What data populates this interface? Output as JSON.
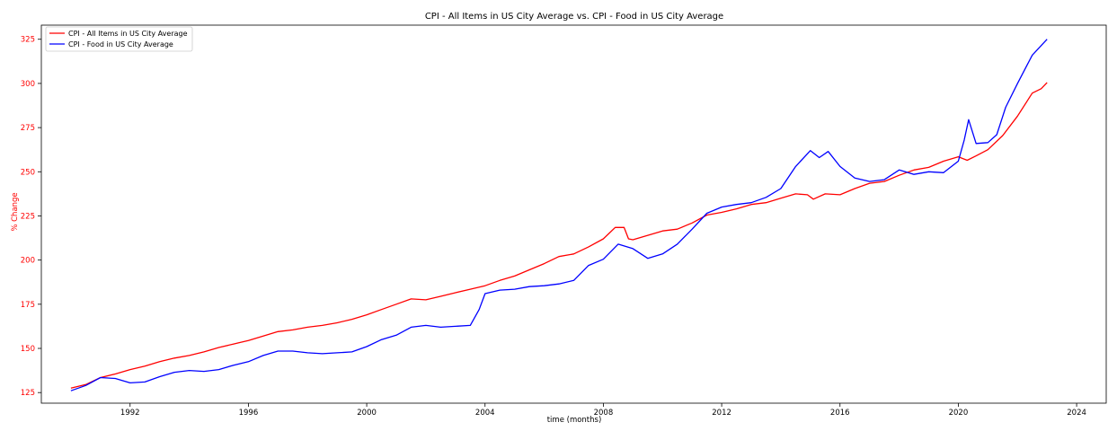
{
  "chart_data": {
    "type": "line",
    "title": "CPI - All Items in US City Average vs. CPI - Food in US City Average",
    "xlabel": "time (months)",
    "ylabel": "% Change",
    "xlim": [
      1989.0,
      2025.0
    ],
    "ylim": [
      119,
      333
    ],
    "x_ticks": [
      1992,
      1996,
      2000,
      2004,
      2008,
      2012,
      2016,
      2020,
      2024
    ],
    "x_tick_labels": [
      "1992",
      "1996",
      "2000",
      "2004",
      "2008",
      "2012",
      "2016",
      "2020",
      "2024"
    ],
    "y_ticks": [
      125,
      150,
      175,
      200,
      225,
      250,
      275,
      300,
      325
    ],
    "y_tick_labels": [
      "125",
      "150",
      "175",
      "200",
      "225",
      "250",
      "275",
      "300",
      "325"
    ],
    "ylabel_color": "#ff0000",
    "grid": false,
    "legend_position": "upper-left",
    "series": [
      {
        "name": "CPI - All Items in US City Average",
        "color": "#ff0000",
        "points": [
          [
            1990.0,
            127.5
          ],
          [
            1990.5,
            129.5
          ],
          [
            1991.0,
            133.5
          ],
          [
            1991.5,
            135.5
          ],
          [
            1992.0,
            138.0
          ],
          [
            1992.5,
            140.0
          ],
          [
            1993.0,
            142.5
          ],
          [
            1993.5,
            144.5
          ],
          [
            1994.0,
            146.0
          ],
          [
            1994.5,
            148.0
          ],
          [
            1995.0,
            150.5
          ],
          [
            1995.5,
            152.5
          ],
          [
            1996.0,
            154.5
          ],
          [
            1996.5,
            157.0
          ],
          [
            1997.0,
            159.5
          ],
          [
            1997.5,
            160.5
          ],
          [
            1998.0,
            162.0
          ],
          [
            1998.5,
            163.0
          ],
          [
            1999.0,
            164.5
          ],
          [
            1999.5,
            166.5
          ],
          [
            2000.0,
            169.0
          ],
          [
            2000.5,
            172.0
          ],
          [
            2001.0,
            175.0
          ],
          [
            2001.5,
            178.0
          ],
          [
            2002.0,
            177.5
          ],
          [
            2002.5,
            179.5
          ],
          [
            2003.0,
            181.5
          ],
          [
            2003.5,
            183.5
          ],
          [
            2004.0,
            185.5
          ],
          [
            2004.5,
            188.5
          ],
          [
            2005.0,
            191.0
          ],
          [
            2005.5,
            194.5
          ],
          [
            2006.0,
            198.0
          ],
          [
            2006.5,
            202.0
          ],
          [
            2007.0,
            203.5
          ],
          [
            2007.5,
            207.5
          ],
          [
            2008.0,
            212.0
          ],
          [
            2008.4,
            218.5
          ],
          [
            2008.7,
            218.5
          ],
          [
            2008.85,
            212.0
          ],
          [
            2009.0,
            211.5
          ],
          [
            2009.5,
            214.0
          ],
          [
            2010.0,
            216.5
          ],
          [
            2010.5,
            217.5
          ],
          [
            2011.0,
            221.0
          ],
          [
            2011.5,
            225.5
          ],
          [
            2012.0,
            227.0
          ],
          [
            2012.5,
            229.0
          ],
          [
            2013.0,
            231.5
          ],
          [
            2013.5,
            232.5
          ],
          [
            2014.0,
            235.0
          ],
          [
            2014.5,
            237.5
          ],
          [
            2014.9,
            237.0
          ],
          [
            2015.1,
            234.5
          ],
          [
            2015.5,
            237.5
          ],
          [
            2016.0,
            237.0
          ],
          [
            2016.5,
            240.5
          ],
          [
            2017.0,
            243.5
          ],
          [
            2017.5,
            244.5
          ],
          [
            2018.0,
            248.0
          ],
          [
            2018.5,
            251.0
          ],
          [
            2019.0,
            252.5
          ],
          [
            2019.5,
            256.0
          ],
          [
            2020.0,
            258.5
          ],
          [
            2020.3,
            256.5
          ],
          [
            2020.6,
            259.0
          ],
          [
            2021.0,
            262.5
          ],
          [
            2021.5,
            270.5
          ],
          [
            2022.0,
            281.5
          ],
          [
            2022.5,
            294.5
          ],
          [
            2022.8,
            297.0
          ],
          [
            2023.0,
            300.5
          ]
        ]
      },
      {
        "name": "CPI - Food in US City Average",
        "color": "#0000ff",
        "points": [
          [
            1990.0,
            126.0
          ],
          [
            1990.5,
            129.0
          ],
          [
            1991.0,
            133.5
          ],
          [
            1991.5,
            133.0
          ],
          [
            1992.0,
            130.5
          ],
          [
            1992.5,
            131.0
          ],
          [
            1993.0,
            134.0
          ],
          [
            1993.5,
            136.5
          ],
          [
            1994.0,
            137.5
          ],
          [
            1994.5,
            137.0
          ],
          [
            1995.0,
            138.0
          ],
          [
            1995.5,
            140.5
          ],
          [
            1996.0,
            142.5
          ],
          [
            1996.5,
            146.0
          ],
          [
            1997.0,
            148.5
          ],
          [
            1997.5,
            148.5
          ],
          [
            1998.0,
            147.5
          ],
          [
            1998.5,
            147.0
          ],
          [
            1999.0,
            147.5
          ],
          [
            1999.5,
            148.0
          ],
          [
            2000.0,
            151.0
          ],
          [
            2000.5,
            155.0
          ],
          [
            2001.0,
            157.5
          ],
          [
            2001.5,
            162.0
          ],
          [
            2002.0,
            163.0
          ],
          [
            2002.5,
            162.0
          ],
          [
            2003.0,
            162.5
          ],
          [
            2003.5,
            163.0
          ],
          [
            2003.8,
            172.0
          ],
          [
            2004.0,
            181.0
          ],
          [
            2004.5,
            183.0
          ],
          [
            2005.0,
            183.5
          ],
          [
            2005.5,
            185.0
          ],
          [
            2006.0,
            185.5
          ],
          [
            2006.5,
            186.5
          ],
          [
            2007.0,
            188.5
          ],
          [
            2007.5,
            197.0
          ],
          [
            2008.0,
            200.5
          ],
          [
            2008.5,
            209.0
          ],
          [
            2009.0,
            206.5
          ],
          [
            2009.5,
            201.0
          ],
          [
            2010.0,
            203.5
          ],
          [
            2010.5,
            209.0
          ],
          [
            2011.0,
            217.5
          ],
          [
            2011.5,
            226.5
          ],
          [
            2012.0,
            230.0
          ],
          [
            2012.5,
            231.5
          ],
          [
            2013.0,
            232.5
          ],
          [
            2013.5,
            235.5
          ],
          [
            2014.0,
            240.5
          ],
          [
            2014.5,
            253.0
          ],
          [
            2015.0,
            262.0
          ],
          [
            2015.3,
            258.0
          ],
          [
            2015.6,
            261.5
          ],
          [
            2016.0,
            253.0
          ],
          [
            2016.5,
            246.5
          ],
          [
            2017.0,
            244.5
          ],
          [
            2017.5,
            245.5
          ],
          [
            2018.0,
            251.0
          ],
          [
            2018.5,
            248.5
          ],
          [
            2019.0,
            250.0
          ],
          [
            2019.5,
            249.5
          ],
          [
            2020.0,
            256.0
          ],
          [
            2020.2,
            268.0
          ],
          [
            2020.35,
            279.5
          ],
          [
            2020.6,
            266.0
          ],
          [
            2021.0,
            266.5
          ],
          [
            2021.3,
            271.0
          ],
          [
            2021.6,
            286.5
          ],
          [
            2022.0,
            300.0
          ],
          [
            2022.5,
            316.0
          ],
          [
            2023.0,
            325.0
          ]
        ]
      }
    ]
  }
}
